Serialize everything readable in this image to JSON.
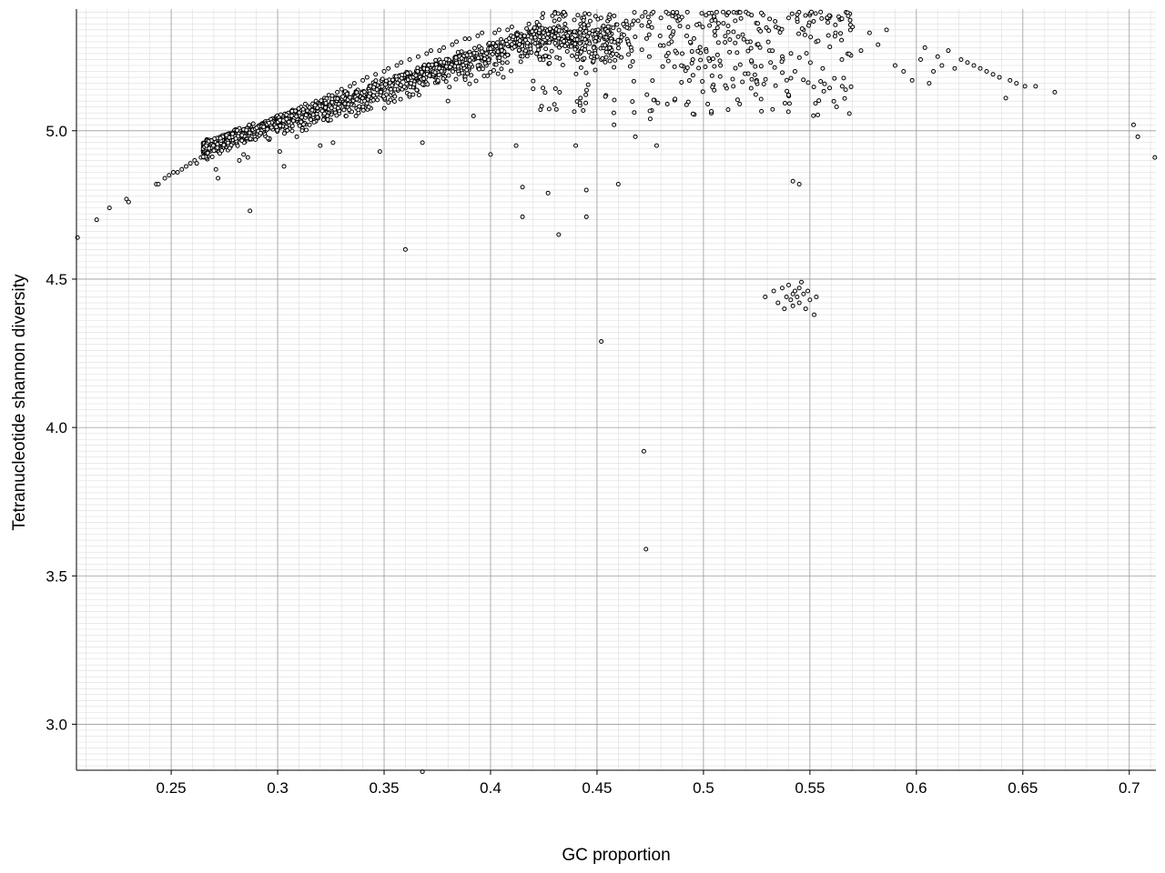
{
  "chart_data": {
    "type": "scatter",
    "title": "",
    "xlabel": "GC proportion",
    "ylabel": "Tetranucleotide shannon diversity",
    "xlim": [
      0.2055,
      0.7125
    ],
    "ylim": [
      2.845,
      5.41
    ],
    "x_ticks": [
      "0.25",
      "0.3",
      "0.35",
      "0.4",
      "0.45",
      "0.5",
      "0.55",
      "0.6",
      "0.65",
      "0.7"
    ],
    "y_ticks": [
      "3.0",
      "3.5",
      "4.0",
      "4.5",
      "5.0"
    ],
    "grid": true,
    "legend": "none",
    "marker": "open-circle",
    "colors": {
      "marker_edge": "#000000",
      "marker_fill": "#ffffff",
      "grid_major": "#999999",
      "grid_minor": "#dddddd"
    },
    "series": [
      {
        "points": [
          [
            0.206,
            4.64
          ],
          [
            0.215,
            4.7
          ],
          [
            0.221,
            4.74
          ],
          [
            0.229,
            4.77
          ],
          [
            0.23,
            4.76
          ],
          [
            0.243,
            4.82
          ],
          [
            0.244,
            4.82
          ],
          [
            0.247,
            4.84
          ],
          [
            0.249,
            4.85
          ],
          [
            0.251,
            4.86
          ],
          [
            0.253,
            4.86
          ],
          [
            0.255,
            4.87
          ],
          [
            0.257,
            4.88
          ],
          [
            0.259,
            4.89
          ],
          [
            0.261,
            4.9
          ],
          [
            0.262,
            4.89
          ],
          [
            0.264,
            4.91
          ],
          [
            0.266,
            4.92
          ],
          [
            0.268,
            4.93
          ],
          [
            0.27,
            4.95
          ],
          [
            0.271,
            4.87
          ],
          [
            0.272,
            4.84
          ],
          [
            0.274,
            4.96
          ],
          [
            0.276,
            4.97
          ],
          [
            0.278,
            4.99
          ],
          [
            0.28,
            4.98
          ],
          [
            0.282,
            4.9
          ],
          [
            0.284,
            4.92
          ],
          [
            0.286,
            4.91
          ],
          [
            0.287,
            4.73
          ],
          [
            0.29,
            5.01
          ],
          [
            0.292,
            5.02
          ],
          [
            0.294,
            5.03
          ],
          [
            0.296,
            4.97
          ],
          [
            0.298,
            5.04
          ],
          [
            0.3,
            5.05
          ],
          [
            0.301,
            4.93
          ],
          [
            0.303,
            4.88
          ],
          [
            0.305,
            5.06
          ],
          [
            0.307,
            5.07
          ],
          [
            0.309,
            4.98
          ],
          [
            0.311,
            5.08
          ],
          [
            0.313,
            5.09
          ],
          [
            0.315,
            5.02
          ],
          [
            0.318,
            5.1
          ],
          [
            0.32,
            4.95
          ],
          [
            0.322,
            5.11
          ],
          [
            0.324,
            5.12
          ],
          [
            0.326,
            4.96
          ],
          [
            0.328,
            5.13
          ],
          [
            0.33,
            5.14
          ],
          [
            0.332,
            5.05
          ],
          [
            0.334,
            5.15
          ],
          [
            0.336,
            5.16
          ],
          [
            0.338,
            5.08
          ],
          [
            0.34,
            5.17
          ],
          [
            0.342,
            5.18
          ],
          [
            0.344,
            5.1
          ],
          [
            0.346,
            5.19
          ],
          [
            0.348,
            4.93
          ],
          [
            0.35,
            5.2
          ],
          [
            0.352,
            5.21
          ],
          [
            0.354,
            5.12
          ],
          [
            0.356,
            5.22
          ],
          [
            0.358,
            5.23
          ],
          [
            0.36,
            4.6
          ],
          [
            0.362,
            5.24
          ],
          [
            0.364,
            5.15
          ],
          [
            0.366,
            5.25
          ],
          [
            0.368,
            4.96
          ],
          [
            0.37,
            5.26
          ],
          [
            0.372,
            5.27
          ],
          [
            0.374,
            5.18
          ],
          [
            0.376,
            5.27
          ],
          [
            0.378,
            5.28
          ],
          [
            0.38,
            5.1
          ],
          [
            0.382,
            5.29
          ],
          [
            0.384,
            5.3
          ],
          [
            0.386,
            5.2
          ],
          [
            0.388,
            5.31
          ],
          [
            0.39,
            5.31
          ],
          [
            0.392,
            5.05
          ],
          [
            0.394,
            5.32
          ],
          [
            0.396,
            5.33
          ],
          [
            0.398,
            5.22
          ],
          [
            0.4,
            4.92
          ],
          [
            0.402,
            5.33
          ],
          [
            0.404,
            5.34
          ],
          [
            0.406,
            5.18
          ],
          [
            0.408,
            5.34
          ],
          [
            0.41,
            5.35
          ],
          [
            0.412,
            4.95
          ],
          [
            0.415,
            4.81
          ],
          [
            0.415,
            4.71
          ],
          [
            0.418,
            5.36
          ],
          [
            0.42,
            5.3
          ],
          [
            0.422,
            5.36
          ],
          [
            0.425,
            5.25
          ],
          [
            0.427,
            4.79
          ],
          [
            0.43,
            5.37
          ],
          [
            0.432,
            4.65
          ],
          [
            0.435,
            5.36
          ],
          [
            0.438,
            5.3
          ],
          [
            0.44,
            4.95
          ],
          [
            0.443,
            5.38
          ],
          [
            0.445,
            4.8
          ],
          [
            0.445,
            4.71
          ],
          [
            0.448,
            5.33
          ],
          [
            0.45,
            5.25
          ],
          [
            0.452,
            4.29
          ],
          [
            0.455,
            5.37
          ],
          [
            0.458,
            5.02
          ],
          [
            0.46,
            4.82
          ],
          [
            0.463,
            5.36
          ],
          [
            0.466,
            5.28
          ],
          [
            0.468,
            4.98
          ],
          [
            0.472,
            3.92
          ],
          [
            0.473,
            3.59
          ],
          [
            0.475,
            5.04
          ],
          [
            0.478,
            4.95
          ],
          [
            0.48,
            5.38
          ],
          [
            0.483,
            5.09
          ],
          [
            0.485,
            5.3
          ],
          [
            0.488,
            5.37
          ],
          [
            0.49,
            5.26
          ],
          [
            0.495,
            5.24
          ],
          [
            0.498,
            5.36
          ],
          [
            0.502,
            5.09
          ],
          [
            0.505,
            5.38
          ],
          [
            0.508,
            5.22
          ],
          [
            0.511,
            5.39
          ],
          [
            0.514,
            5.15
          ],
          [
            0.517,
            5.09
          ],
          [
            0.52,
            5.4
          ],
          [
            0.522,
            5.3
          ],
          [
            0.525,
            5.17
          ],
          [
            0.528,
            5.39
          ],
          [
            0.531,
            5.27
          ],
          [
            0.534,
            5.35
          ],
          [
            0.537,
            5.25
          ],
          [
            0.54,
            5.38
          ],
          [
            0.542,
            4.83
          ],
          [
            0.545,
            4.82
          ],
          [
            0.547,
            5.34
          ],
          [
            0.55,
            5.39
          ],
          [
            0.553,
            5.3
          ],
          [
            0.556,
            5.21
          ],
          [
            0.559,
            5.38
          ],
          [
            0.562,
            5.33
          ],
          [
            0.565,
            5.24
          ],
          [
            0.57,
            5.35
          ],
          [
            0.574,
            5.27
          ],
          [
            0.578,
            5.33
          ],
          [
            0.582,
            5.29
          ],
          [
            0.586,
            5.34
          ],
          [
            0.59,
            5.22
          ],
          [
            0.594,
            5.2
          ],
          [
            0.598,
            5.17
          ],
          [
            0.602,
            5.24
          ],
          [
            0.604,
            5.28
          ],
          [
            0.606,
            5.16
          ],
          [
            0.608,
            5.2
          ],
          [
            0.61,
            5.25
          ],
          [
            0.612,
            5.22
          ],
          [
            0.615,
            5.27
          ],
          [
            0.618,
            5.21
          ],
          [
            0.621,
            5.24
          ],
          [
            0.624,
            5.23
          ],
          [
            0.627,
            5.22
          ],
          [
            0.63,
            5.21
          ],
          [
            0.633,
            5.2
          ],
          [
            0.636,
            5.19
          ],
          [
            0.639,
            5.18
          ],
          [
            0.642,
            5.11
          ],
          [
            0.644,
            5.17
          ],
          [
            0.647,
            5.16
          ],
          [
            0.651,
            5.15
          ],
          [
            0.656,
            5.15
          ],
          [
            0.665,
            5.13
          ],
          [
            0.702,
            5.02
          ],
          [
            0.704,
            4.98
          ],
          [
            0.712,
            4.91
          ],
          [
            0.368,
            2.84
          ],
          [
            0.529,
            4.44
          ],
          [
            0.533,
            4.46
          ],
          [
            0.535,
            4.42
          ],
          [
            0.537,
            4.47
          ],
          [
            0.538,
            4.4
          ],
          [
            0.539,
            4.44
          ],
          [
            0.54,
            4.48
          ],
          [
            0.541,
            4.43
          ],
          [
            0.542,
            4.45
          ],
          [
            0.542,
            4.41
          ],
          [
            0.543,
            4.46
          ],
          [
            0.544,
            4.44
          ],
          [
            0.545,
            4.47
          ],
          [
            0.545,
            4.42
          ],
          [
            0.546,
            4.49
          ],
          [
            0.547,
            4.45
          ],
          [
            0.548,
            4.4
          ],
          [
            0.549,
            4.46
          ],
          [
            0.55,
            4.43
          ],
          [
            0.552,
            4.38
          ],
          [
            0.553,
            4.44
          ]
        ]
      }
    ]
  }
}
